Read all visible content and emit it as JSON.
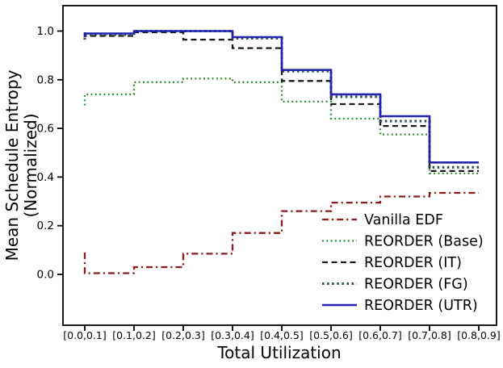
{
  "chart_data": {
    "type": "line",
    "subtype": "step-pre",
    "title": "",
    "xlabel": "Total Utilization",
    "ylabel_line1": "Mean Schedule Entropy",
    "ylabel_line2": "(Normalized)",
    "categories": [
      "[0.0,0.1]",
      "[0.1,0.2]",
      "[0.2,0.3]",
      "[0.3,0.4]",
      "[0.4,0.5]",
      "[0.5,0.6]",
      "[0.6,0.7]",
      "[0.7,0.8]",
      "[0.8,0.9]"
    ],
    "y_ticks": [
      0.0,
      0.2,
      0.4,
      0.6,
      0.8,
      1.0
    ],
    "y_tick_labels": [
      "0.0",
      "0.2",
      "0.4",
      "0.6",
      "0.8",
      "1.0"
    ],
    "ylim": [
      -0.21,
      1.11
    ],
    "grid": false,
    "legend_position": "lower-right-inside-no-frame",
    "axis_color": "#000000",
    "background_color": "#ffffff",
    "series": [
      {
        "name": "Vanilla EDF",
        "color": "#8b1a1a",
        "style": "dashdot",
        "values": [
          0.09,
          0.005,
          0.03,
          0.085,
          0.17,
          0.26,
          0.295,
          0.32,
          0.335
        ]
      },
      {
        "name": "REORDER (Base)",
        "color": "#2e8b2e",
        "style": "dotted-small",
        "values": [
          0.695,
          0.74,
          0.79,
          0.805,
          0.79,
          0.71,
          0.64,
          0.575,
          0.415
        ]
      },
      {
        "name": "REORDER (IT)",
        "color": "#1a1a1a",
        "style": "dashed",
        "values": [
          0.995,
          0.98,
          0.995,
          0.965,
          0.93,
          0.795,
          0.7,
          0.61,
          0.425
        ]
      },
      {
        "name": "REORDER (FG)",
        "color": "#2f4f4f",
        "style": "dotted-large",
        "values": [
          0.965,
          0.985,
          1.0,
          1.0,
          0.97,
          0.835,
          0.73,
          0.63,
          0.44
        ]
      },
      {
        "name": "REORDER (UTR)",
        "color": "#2222aa",
        "style": "solid",
        "values": [
          0.975,
          0.99,
          1.0,
          1.0,
          0.975,
          0.84,
          0.74,
          0.65,
          0.46
        ]
      }
    ]
  }
}
